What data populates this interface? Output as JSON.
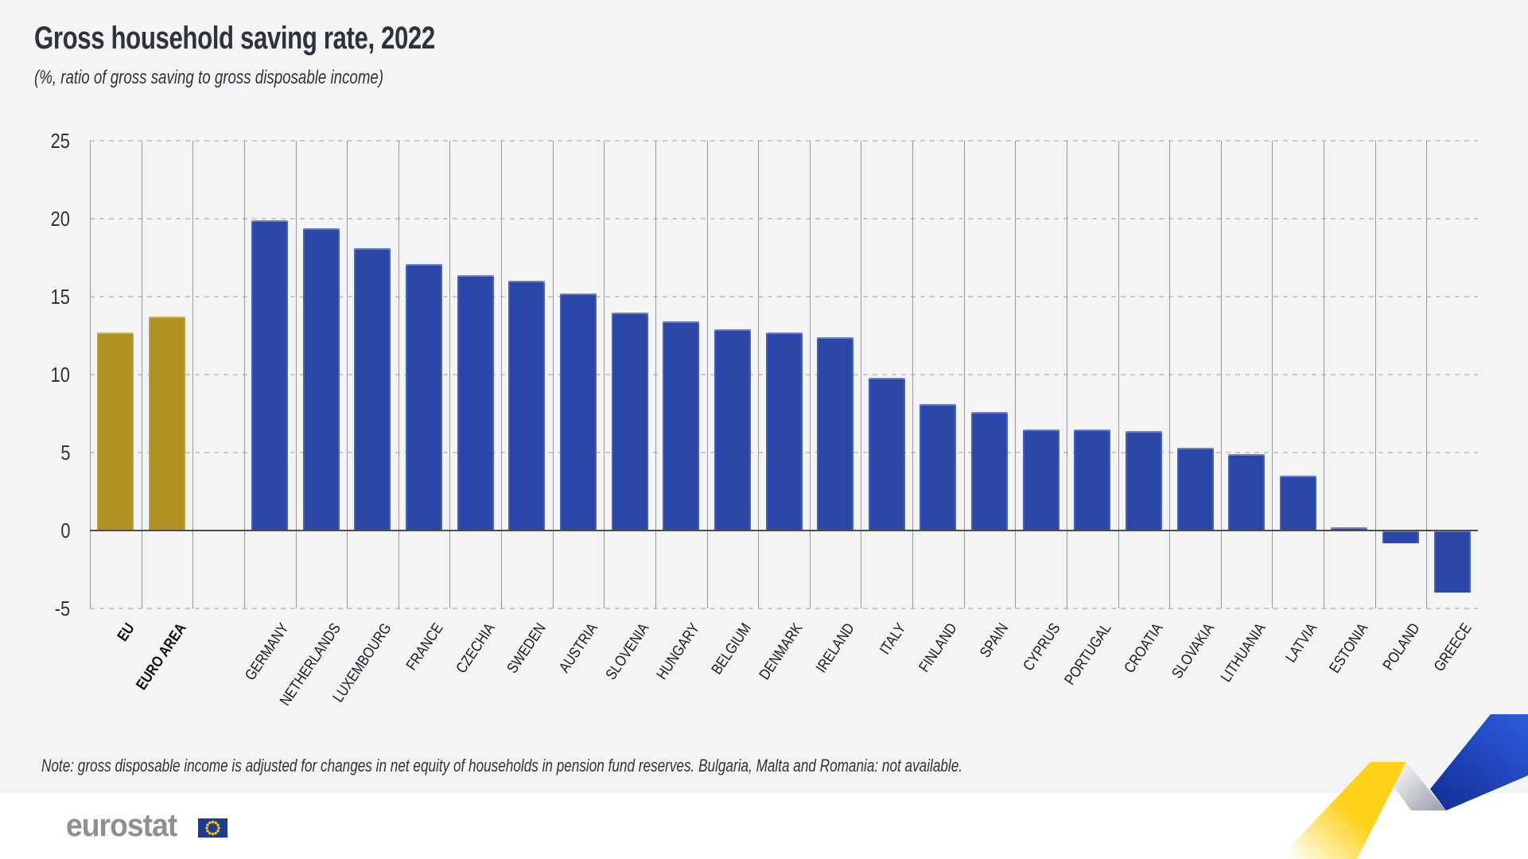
{
  "header": {
    "title": "Gross household saving rate, 2022",
    "subtitle": "(%, ratio of gross saving to gross disposable income)"
  },
  "note": "Note: gross disposable income is adjusted for changes in net equity of households in pension fund reserves. Bulgaria, Malta and Romania: not available.",
  "footer": {
    "logo_text": "eurostat",
    "flag_icon": "eu-flag-icon"
  },
  "colors": {
    "background_panel": "#f4f4f4",
    "aggregate_bar_gold": "#af9121",
    "country_bar_blue": "#2a46a7",
    "zero_line": "#4d4d4d",
    "gridline_dashed": "#c9c9c9",
    "column_separator": "#97979c",
    "text_dark": "#2c323e",
    "logo_gray": "#8d8f92",
    "flag_blue": "#1c3b97",
    "flag_star_yellow": "#ffcf00",
    "ribbon_yellow": "#ffd21a",
    "ribbon_gray": "#a8adb7",
    "ribbon_blue_light": "#2b58d8",
    "ribbon_blue_dark": "#122f96"
  },
  "chart_data": {
    "type": "bar",
    "title": "Gross household saving rate, 2022",
    "xlabel": "",
    "ylabel": "%, ratio of gross saving to gross disposable income",
    "ylim": [
      -5,
      25
    ],
    "yticks": [
      25,
      20,
      15,
      10,
      5,
      0,
      -5
    ],
    "grid": "dashed horizontal gridlines, solid vertical column separators, solid dark zero line",
    "legend": "none",
    "spacer_after_index": 1,
    "bars": [
      {
        "label": "EU",
        "value": 12.7,
        "group": "aggregate"
      },
      {
        "label": "EURO AREA",
        "value": 13.7,
        "group": "aggregate"
      },
      {
        "label": "GERMANY",
        "value": 19.9,
        "group": "country"
      },
      {
        "label": "NETHERLANDS",
        "value": 19.4,
        "group": "country"
      },
      {
        "label": "LUXEMBOURG",
        "value": 18.1,
        "group": "country"
      },
      {
        "label": "FRANCE",
        "value": 17.1,
        "group": "country"
      },
      {
        "label": "CZECHIA",
        "value": 16.4,
        "group": "country"
      },
      {
        "label": "SWEDEN",
        "value": 16.0,
        "group": "country"
      },
      {
        "label": "AUSTRIA",
        "value": 15.2,
        "group": "country"
      },
      {
        "label": "SLOVENIA",
        "value": 14.0,
        "group": "country"
      },
      {
        "label": "HUNGARY",
        "value": 13.4,
        "group": "country"
      },
      {
        "label": "BELGIUM",
        "value": 12.9,
        "group": "country"
      },
      {
        "label": "DENMARK",
        "value": 12.7,
        "group": "country"
      },
      {
        "label": "IRELAND",
        "value": 12.4,
        "group": "country"
      },
      {
        "label": "ITALY",
        "value": 9.8,
        "group": "country"
      },
      {
        "label": "FINLAND",
        "value": 8.1,
        "group": "country"
      },
      {
        "label": "SPAIN",
        "value": 7.6,
        "group": "country"
      },
      {
        "label": "CYPRUS",
        "value": 6.5,
        "group": "country"
      },
      {
        "label": "PORTUGAL",
        "value": 6.5,
        "group": "country"
      },
      {
        "label": "CROATIA",
        "value": 6.4,
        "group": "country"
      },
      {
        "label": "SLOVAKIA",
        "value": 5.3,
        "group": "country"
      },
      {
        "label": "LITHUANIA",
        "value": 4.9,
        "group": "country"
      },
      {
        "label": "LATVIA",
        "value": 3.5,
        "group": "country"
      },
      {
        "label": "ESTONIA",
        "value": 0.2,
        "group": "country"
      },
      {
        "label": "POLAND",
        "value": -0.8,
        "group": "country"
      },
      {
        "label": "GREECE",
        "value": -4.0,
        "group": "country"
      }
    ]
  }
}
